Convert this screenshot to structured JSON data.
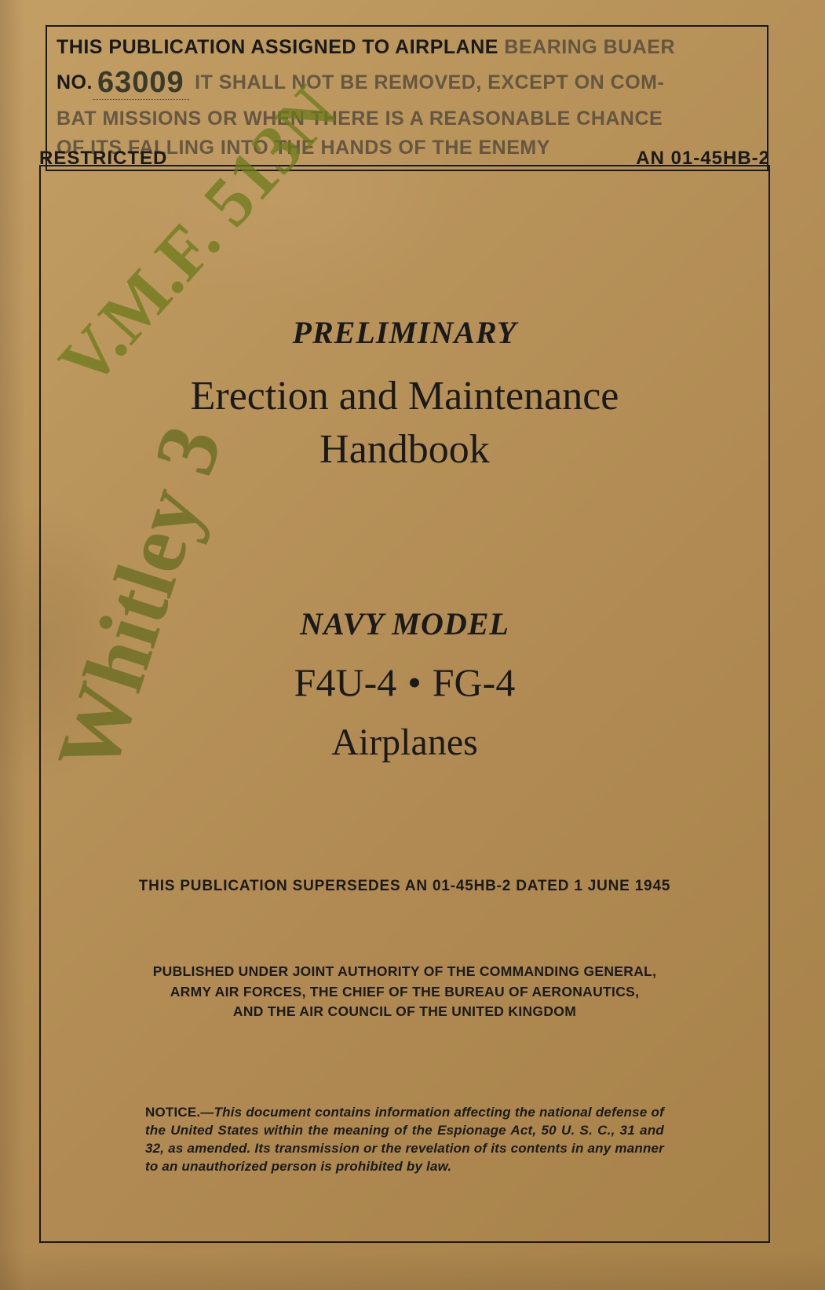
{
  "stamp": {
    "line1_a": "THIS PUBLICATION ASSIGNED TO AIRPLANE ",
    "line1_b": "BEARING BUAER",
    "no_label": "NO.",
    "no_value": "63009",
    "line2": "IT SHALL NOT BE REMOVED, EXCEPT ON COM-",
    "line3": "BAT MISSIONS OR WHEN THERE IS A REASONABLE CHANCE",
    "line4_a": "OF ITS FALLING INTO THE ",
    "line4_b": "HANDS OF THE E",
    "line4_c": "NEMY"
  },
  "header": {
    "restricted": "RESTRICTED",
    "doc_no": "AN 01-45HB-2"
  },
  "title": {
    "preliminary": "PRELIMINARY",
    "main_line1": "Erection and Maintenance",
    "main_line2": "Handbook",
    "navy_model": "NAVY MODEL",
    "model_a": "F4U-4",
    "bullet": "•",
    "model_b": "FG-4",
    "airplanes": "Airplanes"
  },
  "supersedes": "THIS PUBLICATION SUPERSEDES AN 01-45HB-2 DATED 1 JUNE 1945",
  "authority": {
    "line1": "PUBLISHED UNDER JOINT AUTHORITY OF THE COMMANDING GENERAL,",
    "line2": "ARMY AIR FORCES, THE CHIEF OF THE BUREAU OF AERONAUTICS,",
    "line3": "AND THE AIR COUNCIL OF THE UNITED KINGDOM"
  },
  "notice": {
    "lead": "NOTICE.—",
    "body": "This document contains information affecting the national defense of the United States within the meaning of the Espionage Act, 50 U. S. C., 31 and 32, as amended. Its transmission or the revelation of its contents in any manner to an unauthorized person is prohibited by law."
  },
  "handwriting": {
    "annotation1": "V.M.F. 513N",
    "annotation2": "Whitley 3"
  },
  "colors": {
    "paper_base": "#b8935a",
    "ink": "#1a1a1a",
    "handwriting": "#6b7a1a"
  }
}
